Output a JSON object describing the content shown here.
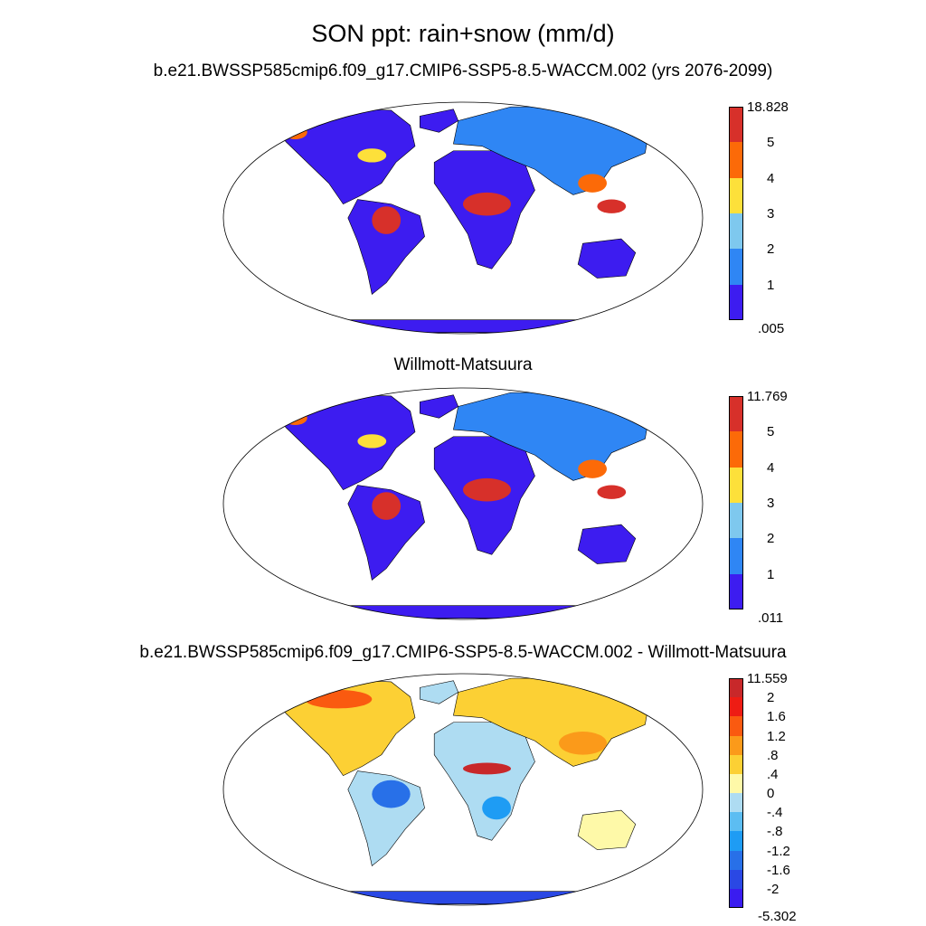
{
  "title": "SON ppt: rain+snow (mm/d)",
  "panels": [
    {
      "subtitle": "b.e21.BWSSP585cmip6.f09_g17.CMIP6-SSP5-8.5-WACCM.002 (yrs 2076-2099)",
      "colorbar": {
        "labels": [
          "18.828",
          "5",
          "4",
          "3",
          "2",
          "1",
          ".005"
        ],
        "colors": [
          "#d7302a",
          "#fc6a08",
          "#fde03a",
          "#7ec8ee",
          "#2f86f4",
          "#3d1cf0"
        ]
      }
    },
    {
      "subtitle": "Willmott-Matsuura",
      "colorbar": {
        "labels": [
          "11.769",
          "5",
          "4",
          "3",
          "2",
          "1",
          ".011"
        ],
        "colors": [
          "#d7302a",
          "#fc6a08",
          "#fde03a",
          "#7ec8ee",
          "#2f86f4",
          "#3d1cf0"
        ]
      }
    },
    {
      "subtitle": "b.e21.BWSSP585cmip6.f09_g17.CMIP6-SSP5-8.5-WACCM.002 - Willmott-Matsuura",
      "colorbar": {
        "labels": [
          "11.559",
          "2",
          "1.6",
          "1.2",
          ".8",
          ".4",
          "0",
          "-.4",
          "-.8",
          "-1.2",
          "-1.6",
          "-2",
          "-5.302"
        ],
        "colors": [
          "#c8282a",
          "#ee1c14",
          "#fa5a10",
          "#fb9a1a",
          "#fcd034",
          "#fef9a8",
          "#aedcf2",
          "#5cbdf2",
          "#1e9cf4",
          "#2870e8",
          "#2a48e4",
          "#3a1cf0"
        ]
      }
    }
  ]
}
